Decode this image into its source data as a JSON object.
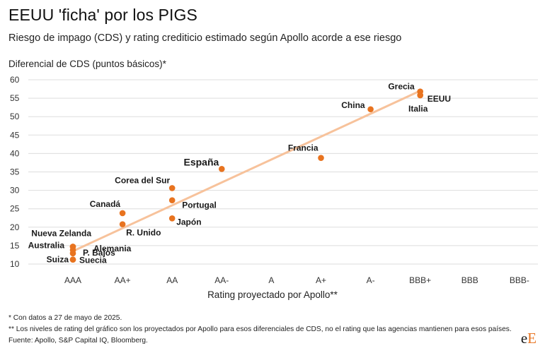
{
  "title": "EEUU 'ficha' por los PIGS",
  "subtitle": "Riesgo de impago (CDS) y rating crediticio estimado según Apollo acorde a ese riesgo",
  "notes": [
    "* Con datos a 27 de mayo de 2025.",
    "** Los niveles de rating del gráfico son los proyectados por Apollo para esos diferenciales de CDS, no el rating que las agencias mantienen para esos países.",
    "Fuente: Apollo, S&P Capital IQ, Bloomberg."
  ],
  "logo": {
    "part1": "e",
    "part2": "E"
  },
  "chart_data": {
    "type": "scatter",
    "ylabel": "Diferencial de CDS (puntos básicos)*",
    "xlabel": "Rating proyectado por Apollo**",
    "ylim": [
      10,
      60
    ],
    "yticks": [
      10,
      15,
      20,
      25,
      30,
      35,
      40,
      45,
      50,
      55,
      60
    ],
    "categories": [
      "AAA",
      "AA+",
      "AA",
      "AA-",
      "A",
      "A+",
      "A-",
      "BBB+",
      "BBB",
      "BBB-"
    ],
    "colors": {
      "point": "#e8731f",
      "trend": "#f7c29b"
    },
    "trendline": {
      "from": {
        "x": "AAA",
        "y": 13.5
      },
      "to": {
        "x": "BBB+",
        "y": 57
      }
    },
    "points": [
      {
        "label": "Grecia",
        "x": "BBB+",
        "y": 56.8
      },
      {
        "label": "EEUU",
        "x": "BBB+",
        "y": 55.8
      },
      {
        "label": "Italia",
        "x": "BBB+",
        "y": 55.8
      },
      {
        "label": "China",
        "x": "A-",
        "y": 52
      },
      {
        "label": "Francia",
        "x": "A+",
        "y": 38.8
      },
      {
        "label": "España",
        "x": "AA-",
        "y": 35.8
      },
      {
        "label": "Corea del Sur",
        "x": "AA",
        "y": 30.6
      },
      {
        "label": "Portugal",
        "x": "AA",
        "y": 27.3
      },
      {
        "label": "Japón",
        "x": "AA",
        "y": 22.4
      },
      {
        "label": "Canadá",
        "x": "AA+",
        "y": 23.8
      },
      {
        "label": "R. Unido",
        "x": "AA+",
        "y": 20.8
      },
      {
        "label": "Nueva Zelanda",
        "x": "AAA",
        "y": 14.7
      },
      {
        "label": "Australia",
        "x": "AAA",
        "y": 14.7
      },
      {
        "label": "Alemania",
        "x": "AAA",
        "y": 13.8
      },
      {
        "label": "P. Bajos",
        "x": "AAA",
        "y": 12.9
      },
      {
        "label": "Suiza",
        "x": "AAA",
        "y": 11.2
      },
      {
        "label": "Suecia",
        "x": "AAA",
        "y": 11.2
      }
    ]
  }
}
